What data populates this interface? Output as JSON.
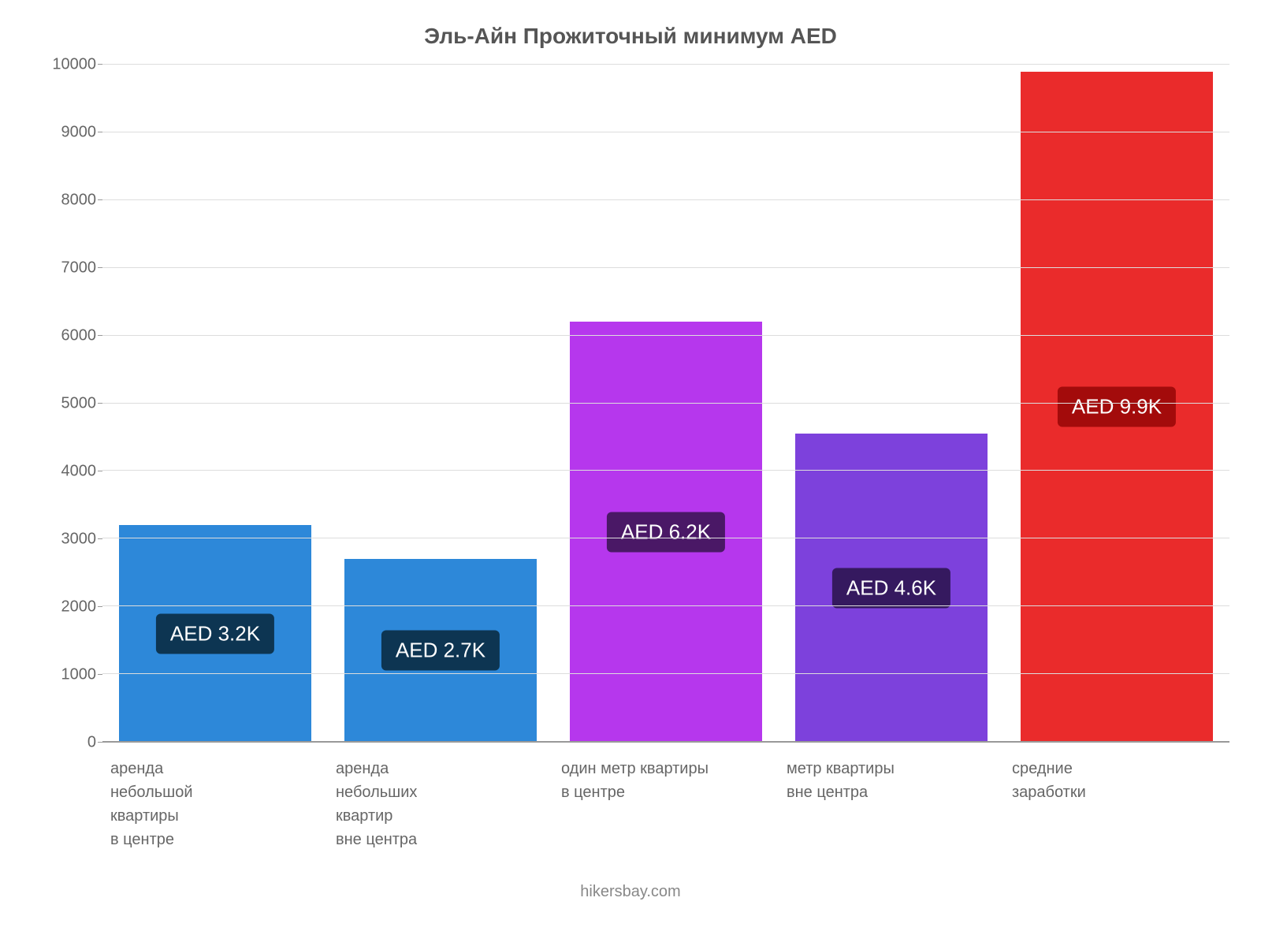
{
  "chart": {
    "type": "bar",
    "title": "Эль-Айн Прожиточный минимум AED",
    "title_fontsize": 28,
    "title_color": "#555555",
    "background_color": "#ffffff",
    "attribution": "hikersbay.com",
    "attribution_fontsize": 20,
    "attribution_color": "#888888",
    "ylim": [
      0,
      10000
    ],
    "ytick_step": 1000,
    "yticks": [
      0,
      1000,
      2000,
      3000,
      4000,
      5000,
      6000,
      7000,
      8000,
      9000,
      10000
    ],
    "ytick_fontsize": 20,
    "ytick_color": "#666666",
    "grid_color": "#dddddd",
    "axis_color": "#999999",
    "bar_width_pct": 85,
    "label_fontsize": 20,
    "label_color": "#666666",
    "badge_fontsize": 26,
    "categories": [
      {
        "lines": [
          "аренда",
          "небольшой",
          "квартиры",
          "в центре"
        ],
        "value": 3200,
        "display": "AED 3.2K",
        "bar_color": "#2d88d9",
        "badge_bg": "#0d3552"
      },
      {
        "lines": [
          "аренда",
          "небольших",
          "квартир",
          "вне центра"
        ],
        "value": 2700,
        "display": "AED 2.7K",
        "bar_color": "#2d88d9",
        "badge_bg": "#0d3552"
      },
      {
        "lines": [
          "один метр квартиры",
          "в центре"
        ],
        "value": 6200,
        "display": "AED 6.2K",
        "bar_color": "#b637ed",
        "badge_bg": "#4a1866"
      },
      {
        "lines": [
          "метр квартиры",
          "вне центра"
        ],
        "value": 4550,
        "display": "AED 4.6K",
        "bar_color": "#7d41dc",
        "badge_bg": "#35195f"
      },
      {
        "lines": [
          "средние",
          "заработки"
        ],
        "value": 9900,
        "display": "AED 9.9K",
        "bar_color": "#ea2b2b",
        "badge_bg": "#a30b0b"
      }
    ]
  }
}
